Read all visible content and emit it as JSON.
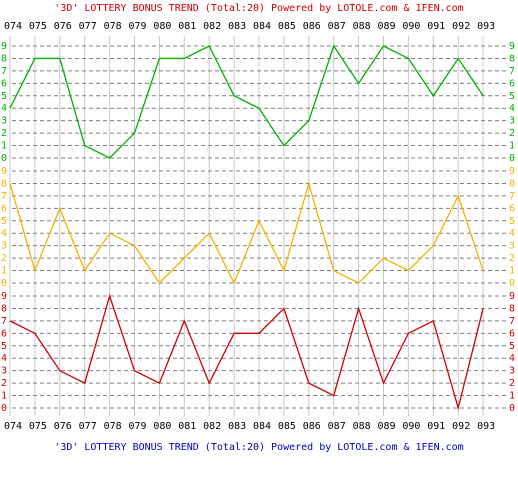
{
  "chart_data": {
    "type": "line",
    "title": "'3D' LOTTERY BONUS TREND (Total:20)  Powered by LOTOLE.com & 1FEN.com",
    "footer": "'3D' LOTTERY BONUS TREND (Total:20)  Powered by LOTOLE.com & 1FEN.com",
    "categories": [
      "074",
      "075",
      "076",
      "077",
      "078",
      "079",
      "080",
      "081",
      "082",
      "083",
      "084",
      "085",
      "086",
      "087",
      "088",
      "089",
      "090",
      "091",
      "092",
      "093"
    ],
    "ylim": [
      0,
      9
    ],
    "yticks": [
      0,
      1,
      2,
      3,
      4,
      5,
      6,
      7,
      8,
      9
    ],
    "grid": true,
    "series": [
      {
        "color": "#00b000",
        "values": [
          4,
          8,
          8,
          1,
          0,
          2,
          8,
          8,
          9,
          5,
          4,
          1,
          3,
          9,
          6,
          9,
          8,
          5,
          8,
          5
        ]
      },
      {
        "color": "#f0b400",
        "values": [
          8,
          1,
          6,
          1,
          4,
          3,
          0,
          2,
          4,
          0,
          5,
          1,
          8,
          1,
          0,
          2,
          1,
          3,
          7,
          1
        ]
      },
      {
        "color": "#d00000",
        "values": [
          7,
          6,
          3,
          2,
          9,
          3,
          2,
          7,
          2,
          6,
          6,
          8,
          2,
          1,
          8,
          2,
          6,
          7,
          0,
          8
        ]
      }
    ]
  }
}
